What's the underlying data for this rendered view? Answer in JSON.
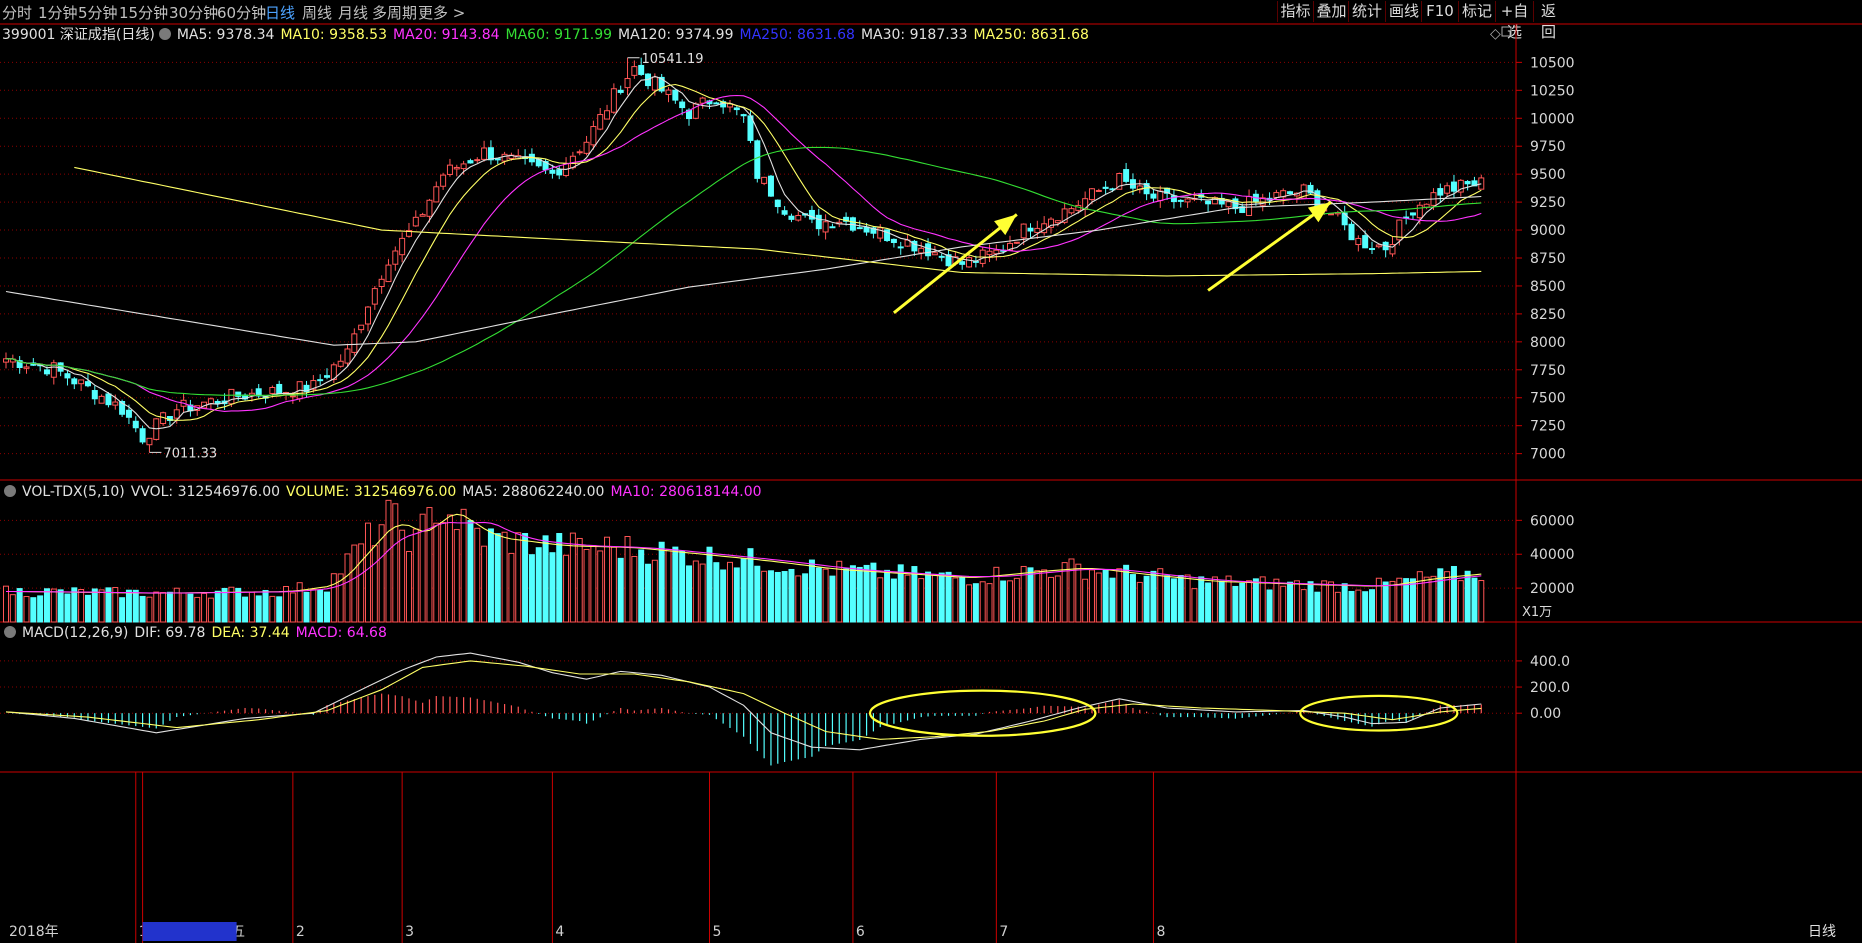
{
  "toolbar": {
    "periods": [
      "分时",
      "1分钟",
      "5分钟",
      "15分钟",
      "30分钟",
      "60分钟",
      "日线",
      "周线",
      "月线",
      "多周期",
      "更多 >"
    ],
    "active": "日线",
    "right_buttons": [
      "指标",
      "叠加",
      "统计",
      "画线",
      "F10",
      "标记",
      "+自选",
      "返回"
    ]
  },
  "main_info": {
    "code": "399001 深证成指(日线)",
    "items": [
      {
        "label": "MA5: 9378.34",
        "color": "#e0e0e0"
      },
      {
        "label": "MA10: 9358.53",
        "color": "#ffff66"
      },
      {
        "label": "MA20: 9143.84",
        "color": "#ff33ff"
      },
      {
        "label": "MA60: 9171.99",
        "color": "#33dd33"
      },
      {
        "label": "MA120: 9374.99",
        "color": "#e0e0e0"
      },
      {
        "label": "MA250: 8631.68",
        "color": "#3333ff"
      },
      {
        "label": "MA30: 9187.33",
        "color": "#e0e0e0"
      },
      {
        "label": "MA250: 8631.68",
        "color": "#ffff66"
      }
    ]
  },
  "vol_info": {
    "items": [
      {
        "label": "VOL-TDX(5,10)",
        "color": "#e0e0e0"
      },
      {
        "label": "VVOL: 312546976.00",
        "color": "#e0e0e0"
      },
      {
        "label": "VOLUME: 312546976.00",
        "color": "#ffff66"
      },
      {
        "label": "MA5: 288062240.00",
        "color": "#e0e0e0"
      },
      {
        "label": "MA10: 280618144.00",
        "color": "#ff33ff"
      }
    ]
  },
  "macd_info": {
    "items": [
      {
        "label": "MACD(12,26,9)",
        "color": "#e0e0e0"
      },
      {
        "label": "DIF: 69.78",
        "color": "#e0e0e0"
      },
      {
        "label": "DEA: 37.44",
        "color": "#ffff66"
      },
      {
        "label": "MACD: 64.68",
        "color": "#ff33ff"
      }
    ]
  },
  "colors": {
    "up": "#ff5555",
    "down": "#54ffff",
    "ma5": "#e0e0e0",
    "ma10": "#ffff66",
    "ma20": "#ff33ff",
    "ma60": "#33dd33",
    "ma120": "#e0e0e0",
    "ma250": "#ffff66",
    "grid": "#8b0000",
    "axis": "#cc0000",
    "annotation": "#ffff33"
  },
  "chart_data": [
    {
      "type": "line",
      "name": "price",
      "ylim": [
        6800,
        10700
      ],
      "y_ticks": [
        7000,
        7250,
        7500,
        7750,
        8000,
        8250,
        8500,
        8750,
        9000,
        9250,
        9500,
        9750,
        10000,
        10250,
        10500
      ],
      "y_tick_labels": [
        "7000",
        "7250",
        "7500",
        "7750",
        "8000",
        "8250",
        "8500",
        "8750",
        "9000",
        "9250",
        "9500",
        "9750",
        "10000",
        "10250",
        "10500"
      ],
      "close_anchors": [
        [
          0,
          7850
        ],
        [
          7,
          7760
        ],
        [
          13,
          7550
        ],
        [
          17,
          7400
        ],
        [
          20,
          7150
        ],
        [
          25,
          7400
        ],
        [
          34,
          7520
        ],
        [
          40,
          7560
        ],
        [
          45,
          7600
        ],
        [
          50,
          7900
        ],
        [
          53,
          8350
        ],
        [
          56,
          8750
        ],
        [
          60,
          9050
        ],
        [
          64,
          9500
        ],
        [
          70,
          9700
        ],
        [
          80,
          9500
        ],
        [
          85,
          9800
        ],
        [
          90,
          10300
        ],
        [
          92,
          10450
        ],
        [
          96,
          10250
        ],
        [
          100,
          10050
        ],
        [
          104,
          10200
        ],
        [
          108,
          10000
        ],
        [
          110,
          9500
        ],
        [
          114,
          9200
        ],
        [
          118,
          9050
        ],
        [
          122,
          9100
        ],
        [
          127,
          9000
        ],
        [
          134,
          8850
        ],
        [
          140,
          8700
        ],
        [
          145,
          8800
        ],
        [
          150,
          9050
        ],
        [
          156,
          9200
        ],
        [
          160,
          9350
        ],
        [
          163,
          9450
        ],
        [
          167,
          9300
        ],
        [
          173,
          9250
        ],
        [
          180,
          9200
        ],
        [
          186,
          9300
        ],
        [
          190,
          9350
        ],
        [
          194,
          9150
        ],
        [
          198,
          8900
        ],
        [
          202,
          8850
        ],
        [
          206,
          9200
        ],
        [
          210,
          9350
        ],
        [
          214,
          9400
        ],
        [
          216,
          9420
        ]
      ],
      "highlights": [
        {
          "label": "10541.19",
          "x": 91,
          "y": 10541.19,
          "side": "right"
        },
        {
          "label": "7011.33",
          "x": 21,
          "y": 7011.33,
          "side": "right"
        }
      ]
    },
    {
      "type": "bar",
      "name": "volume",
      "ylim": [
        0,
        72000
      ],
      "y_ticks": [
        20000,
        40000,
        60000
      ],
      "y_tick_labels": [
        "20000",
        "40000",
        "60000"
      ],
      "unit_label": "X1万",
      "volume_anchors": [
        [
          0,
          18000
        ],
        [
          20,
          17000
        ],
        [
          40,
          18000
        ],
        [
          47,
          22000
        ],
        [
          52,
          45000
        ],
        [
          56,
          62000
        ],
        [
          60,
          48000
        ],
        [
          63,
          68000
        ],
        [
          70,
          50000
        ],
        [
          80,
          45000
        ],
        [
          90,
          44000
        ],
        [
          100,
          40000
        ],
        [
          110,
          36000
        ],
        [
          120,
          31000
        ],
        [
          140,
          26000
        ],
        [
          150,
          30000
        ],
        [
          157,
          32000
        ],
        [
          163,
          29000
        ],
        [
          175,
          24000
        ],
        [
          190,
          22000
        ],
        [
          200,
          21000
        ],
        [
          208,
          26000
        ],
        [
          216,
          29000
        ]
      ]
    },
    {
      "type": "line",
      "name": "macd",
      "ylim": [
        -450,
        560
      ],
      "y_ticks": [
        0,
        200,
        400
      ],
      "y_tick_labels": [
        "0.00",
        "200.0",
        "400.0"
      ],
      "dif_anchors": [
        [
          0,
          10
        ],
        [
          10,
          -40
        ],
        [
          22,
          -150
        ],
        [
          35,
          -40
        ],
        [
          45,
          0
        ],
        [
          52,
          180
        ],
        [
          58,
          330
        ],
        [
          63,
          430
        ],
        [
          68,
          460
        ],
        [
          75,
          390
        ],
        [
          80,
          310
        ],
        [
          85,
          260
        ],
        [
          90,
          320
        ],
        [
          96,
          290
        ],
        [
          103,
          200
        ],
        [
          108,
          60
        ],
        [
          112,
          -150
        ],
        [
          118,
          -260
        ],
        [
          125,
          -280
        ],
        [
          134,
          -200
        ],
        [
          142,
          -160
        ],
        [
          150,
          -60
        ],
        [
          157,
          40
        ],
        [
          163,
          110
        ],
        [
          170,
          40
        ],
        [
          180,
          10
        ],
        [
          190,
          20
        ],
        [
          196,
          -30
        ],
        [
          200,
          -80
        ],
        [
          205,
          -70
        ],
        [
          210,
          40
        ],
        [
          216,
          70
        ]
      ],
      "dea_anchors": [
        [
          0,
          10
        ],
        [
          12,
          -30
        ],
        [
          25,
          -110
        ],
        [
          37,
          -50
        ],
        [
          47,
          20
        ],
        [
          55,
          180
        ],
        [
          61,
          350
        ],
        [
          68,
          400
        ],
        [
          76,
          360
        ],
        [
          84,
          300
        ],
        [
          92,
          300
        ],
        [
          100,
          240
        ],
        [
          108,
          150
        ],
        [
          114,
          0
        ],
        [
          120,
          -140
        ],
        [
          128,
          -200
        ],
        [
          136,
          -180
        ],
        [
          144,
          -140
        ],
        [
          152,
          -60
        ],
        [
          158,
          30
        ],
        [
          165,
          70
        ],
        [
          175,
          40
        ],
        [
          186,
          20
        ],
        [
          196,
          0
        ],
        [
          203,
          -50
        ],
        [
          210,
          10
        ],
        [
          216,
          37
        ]
      ]
    }
  ],
  "x_axis": {
    "labels": [
      {
        "label": "2018年",
        "index": 0
      },
      {
        "label": "1",
        "index": 19
      },
      {
        "label": "2019/01/04/五",
        "index": 20
      },
      {
        "label": "2",
        "index": 42
      },
      {
        "label": "3",
        "index": 58
      },
      {
        "label": "4",
        "index": 80
      },
      {
        "label": "5",
        "index": 103
      },
      {
        "label": "6",
        "index": 124
      },
      {
        "label": "7",
        "index": 145
      },
      {
        "label": "8",
        "index": 168
      }
    ],
    "right_label": "日线"
  },
  "annotations": {
    "arrows": [
      {
        "from": [
          130,
          8260
        ],
        "to": [
          148,
          9140
        ]
      },
      {
        "from": [
          176,
          8460
        ],
        "to": [
          194,
          9250
        ]
      }
    ],
    "ellipses": [
      {
        "center": [
          143,
          0
        ],
        "rx": 16.5,
        "ry": 150
      },
      {
        "center": [
          201,
          0
        ],
        "rx": 11.5,
        "ry": 115
      }
    ]
  }
}
